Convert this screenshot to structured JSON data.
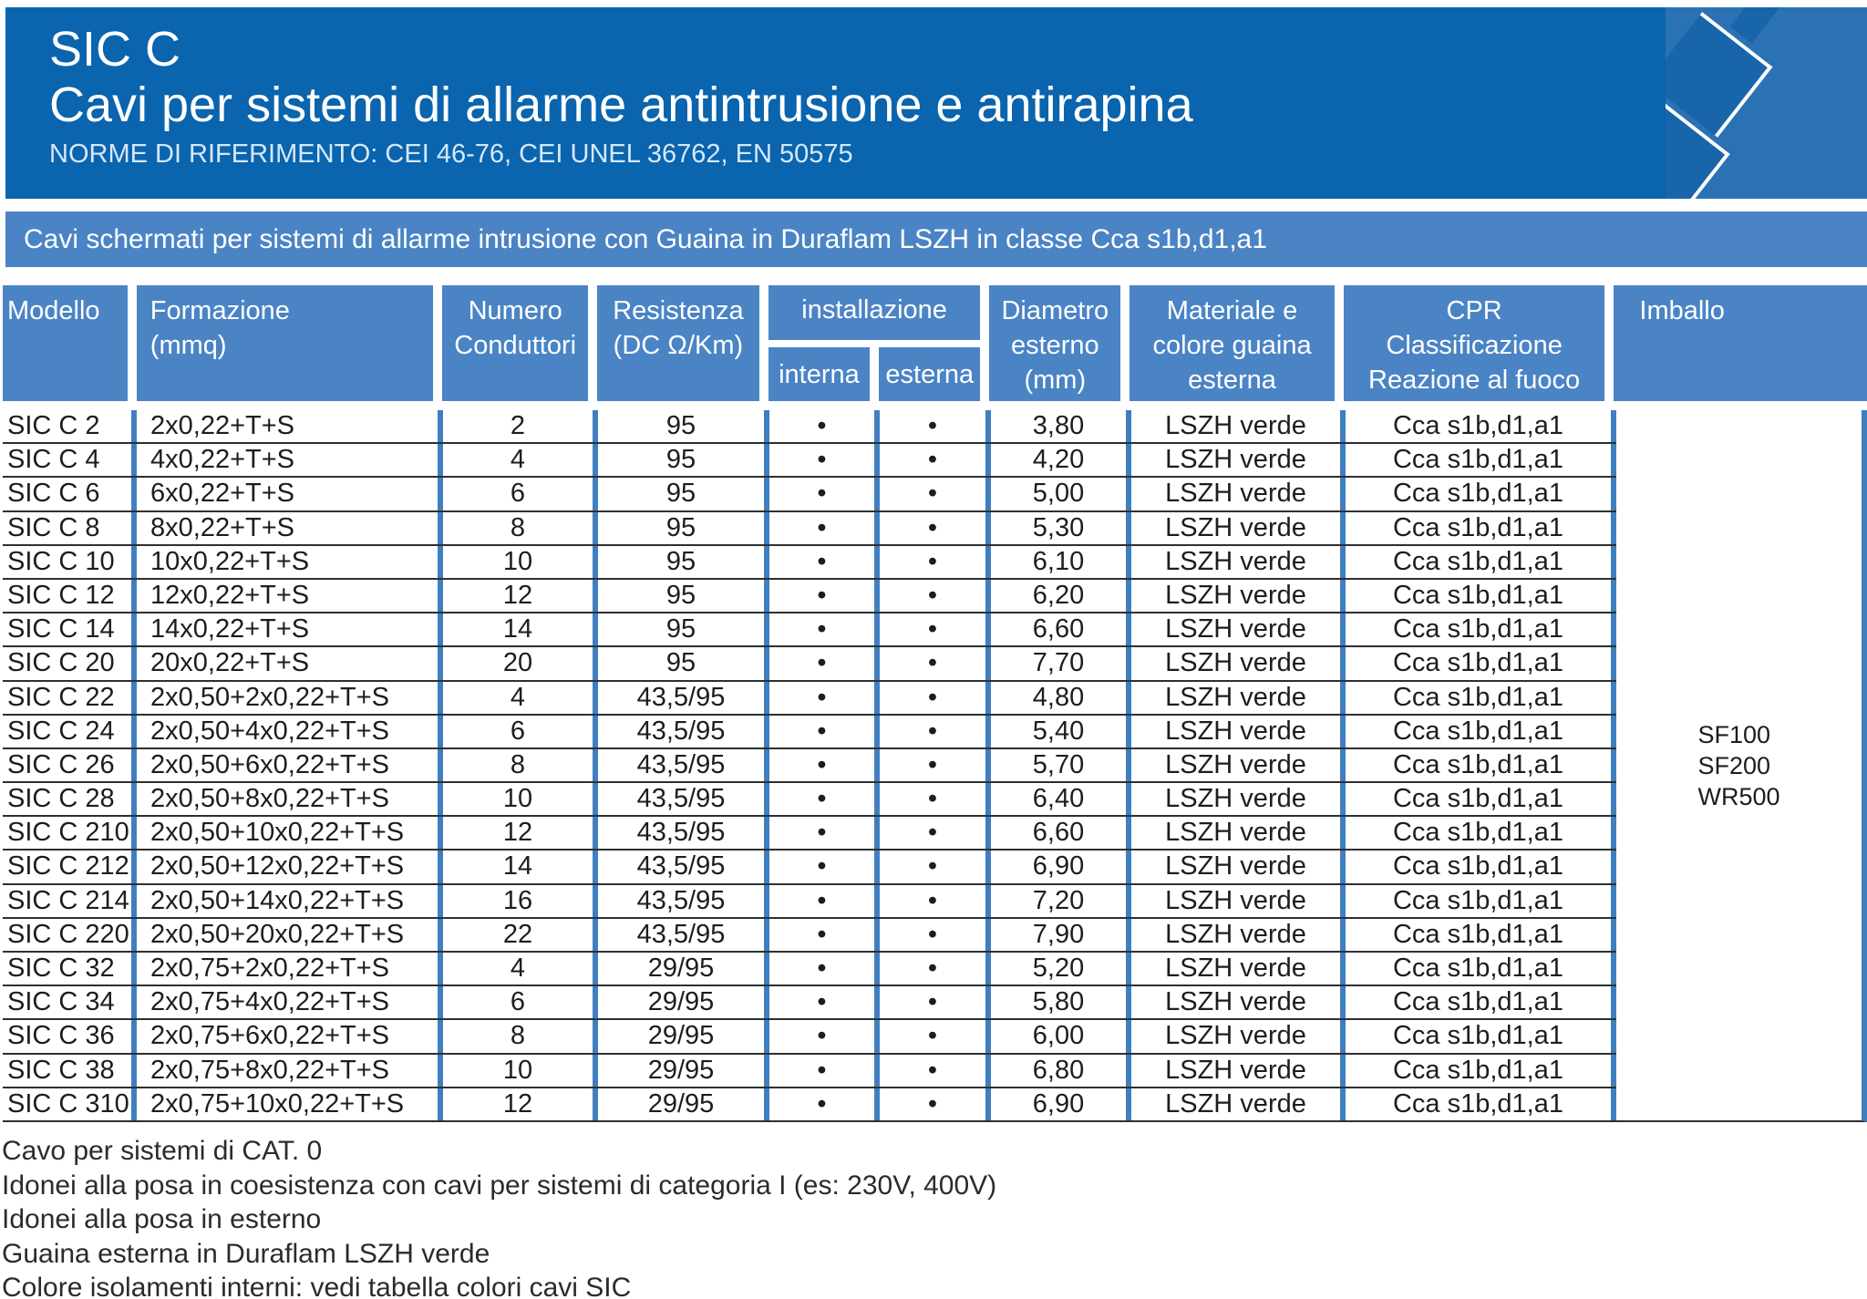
{
  "colors": {
    "header_bg": "#0a64ae",
    "panel_bg": "#2b72b4",
    "icon_fill": "#1965a9",
    "band_bg": "#4a84c5",
    "border_blue": "#3f7fc0",
    "row_line": "#2f2f2f",
    "text": "#1d1d1d",
    "header_text": "#ffffff",
    "norms_text": "#d6e8f8"
  },
  "header": {
    "product": "SIC C",
    "title": "Cavi per sistemi di allarme antintrusione e antirapina",
    "norms": "NORME DI RIFERIMENTO: CEI 46-76, CEI UNEL 36762, EN 50575"
  },
  "banner": {
    "text": "Cavi schermati per sistemi di allarme intrusione con Guaina in Duraflam LSZH in classe Cca s1b,d1,a1"
  },
  "table": {
    "columns": [
      {
        "label": "Modello"
      },
      {
        "label": "Formazione\n(mmq)"
      },
      {
        "label": "Numero\nConduttori"
      },
      {
        "label": "Resistenza\n(DC Ω/Km)"
      },
      {
        "label": "installazione",
        "sub": [
          "interna",
          "esterna"
        ]
      },
      {
        "label": "Diametro\nesterno\n(mm)"
      },
      {
        "label": "Materiale e\ncolore guaina\nesterna"
      },
      {
        "label": "CPR\nClassificazione\nReazione al fuoco"
      },
      {
        "label": "Imballo"
      }
    ],
    "bullet": "•",
    "rows": [
      {
        "modello": "SIC C 2",
        "formazione": "2x0,22+T+S",
        "conduttori": "2",
        "resistenza": "95",
        "interna": true,
        "esterna": true,
        "diametro": "3,80",
        "guaina": "LSZH verde",
        "cpr": "Cca s1b,d1,a1"
      },
      {
        "modello": "SIC C 4",
        "formazione": "4x0,22+T+S",
        "conduttori": "4",
        "resistenza": "95",
        "interna": true,
        "esterna": true,
        "diametro": "4,20",
        "guaina": "LSZH verde",
        "cpr": "Cca s1b,d1,a1"
      },
      {
        "modello": "SIC C 6",
        "formazione": "6x0,22+T+S",
        "conduttori": "6",
        "resistenza": "95",
        "interna": true,
        "esterna": true,
        "diametro": "5,00",
        "guaina": "LSZH verde",
        "cpr": "Cca s1b,d1,a1"
      },
      {
        "modello": "SIC C 8",
        "formazione": "8x0,22+T+S",
        "conduttori": "8",
        "resistenza": "95",
        "interna": true,
        "esterna": true,
        "diametro": "5,30",
        "guaina": "LSZH verde",
        "cpr": "Cca s1b,d1,a1"
      },
      {
        "modello": "SIC C 10",
        "formazione": "10x0,22+T+S",
        "conduttori": "10",
        "resistenza": "95",
        "interna": true,
        "esterna": true,
        "diametro": "6,10",
        "guaina": "LSZH verde",
        "cpr": "Cca s1b,d1,a1"
      },
      {
        "modello": "SIC C 12",
        "formazione": "12x0,22+T+S",
        "conduttori": "12",
        "resistenza": "95",
        "interna": true,
        "esterna": true,
        "diametro": "6,20",
        "guaina": "LSZH verde",
        "cpr": "Cca s1b,d1,a1"
      },
      {
        "modello": "SIC C 14",
        "formazione": "14x0,22+T+S",
        "conduttori": "14",
        "resistenza": "95",
        "interna": true,
        "esterna": true,
        "diametro": "6,60",
        "guaina": "LSZH verde",
        "cpr": "Cca s1b,d1,a1"
      },
      {
        "modello": "SIC C 20",
        "formazione": "20x0,22+T+S",
        "conduttori": "20",
        "resistenza": "95",
        "interna": true,
        "esterna": true,
        "diametro": "7,70",
        "guaina": "LSZH verde",
        "cpr": "Cca s1b,d1,a1"
      },
      {
        "modello": "SIC C 22",
        "formazione": "2x0,50+2x0,22+T+S",
        "conduttori": "4",
        "resistenza": "43,5/95",
        "interna": true,
        "esterna": true,
        "diametro": "4,80",
        "guaina": "LSZH verde",
        "cpr": "Cca s1b,d1,a1"
      },
      {
        "modello": "SIC C 24",
        "formazione": "2x0,50+4x0,22+T+S",
        "conduttori": "6",
        "resistenza": "43,5/95",
        "interna": true,
        "esterna": true,
        "diametro": "5,40",
        "guaina": "LSZH verde",
        "cpr": "Cca s1b,d1,a1"
      },
      {
        "modello": "SIC C 26",
        "formazione": "2x0,50+6x0,22+T+S",
        "conduttori": "8",
        "resistenza": "43,5/95",
        "interna": true,
        "esterna": true,
        "diametro": "5,70",
        "guaina": "LSZH verde",
        "cpr": "Cca s1b,d1,a1"
      },
      {
        "modello": "SIC C 28",
        "formazione": "2x0,50+8x0,22+T+S",
        "conduttori": "10",
        "resistenza": "43,5/95",
        "interna": true,
        "esterna": true,
        "diametro": "6,40",
        "guaina": "LSZH verde",
        "cpr": "Cca s1b,d1,a1"
      },
      {
        "modello": "SIC C 210",
        "formazione": "2x0,50+10x0,22+T+S",
        "conduttori": "12",
        "resistenza": "43,5/95",
        "interna": true,
        "esterna": true,
        "diametro": "6,60",
        "guaina": "LSZH verde",
        "cpr": "Cca s1b,d1,a1"
      },
      {
        "modello": "SIC C 212",
        "formazione": "2x0,50+12x0,22+T+S",
        "conduttori": "14",
        "resistenza": "43,5/95",
        "interna": true,
        "esterna": true,
        "diametro": "6,90",
        "guaina": "LSZH verde",
        "cpr": "Cca s1b,d1,a1"
      },
      {
        "modello": "SIC C 214",
        "formazione": "2x0,50+14x0,22+T+S",
        "conduttori": "16",
        "resistenza": "43,5/95",
        "interna": true,
        "esterna": true,
        "diametro": "7,20",
        "guaina": "LSZH verde",
        "cpr": "Cca s1b,d1,a1"
      },
      {
        "modello": "SIC C 220",
        "formazione": "2x0,50+20x0,22+T+S",
        "conduttori": "22",
        "resistenza": "43,5/95",
        "interna": true,
        "esterna": true,
        "diametro": "7,90",
        "guaina": "LSZH verde",
        "cpr": "Cca s1b,d1,a1"
      },
      {
        "modello": "SIC C 32",
        "formazione": "2x0,75+2x0,22+T+S",
        "conduttori": "4",
        "resistenza": "29/95",
        "interna": true,
        "esterna": true,
        "diametro": "5,20",
        "guaina": "LSZH verde",
        "cpr": "Cca s1b,d1,a1"
      },
      {
        "modello": "SIC C 34",
        "formazione": "2x0,75+4x0,22+T+S",
        "conduttori": "6",
        "resistenza": "29/95",
        "interna": true,
        "esterna": true,
        "diametro": "5,80",
        "guaina": "LSZH verde",
        "cpr": "Cca s1b,d1,a1"
      },
      {
        "modello": "SIC C 36",
        "formazione": "2x0,75+6x0,22+T+S",
        "conduttori": "8",
        "resistenza": "29/95",
        "interna": true,
        "esterna": true,
        "diametro": "6,00",
        "guaina": "LSZH verde",
        "cpr": "Cca s1b,d1,a1"
      },
      {
        "modello": "SIC C 38",
        "formazione": "2x0,75+8x0,22+T+S",
        "conduttori": "10",
        "resistenza": "29/95",
        "interna": true,
        "esterna": true,
        "diametro": "6,80",
        "guaina": "LSZH verde",
        "cpr": "Cca s1b,d1,a1"
      },
      {
        "modello": "SIC C 310",
        "formazione": "2x0,75+10x0,22+T+S",
        "conduttori": "12",
        "resistenza": "29/95",
        "interna": true,
        "esterna": true,
        "diametro": "6,90",
        "guaina": "LSZH verde",
        "cpr": "Cca s1b,d1,a1"
      }
    ],
    "imballo_text": "SF100\nSF200\nWR500"
  },
  "notes": [
    "Cavo per sistemi di CAT. 0",
    "Idonei alla posa in coesistenza con cavi per sistemi di categoria I (es: 230V, 400V)",
    "Idonei alla posa in esterno",
    "Guaina esterna in Duraflam LSZH verde",
    "Colore isolamenti interni: vedi tabella colori cavi SIC"
  ]
}
